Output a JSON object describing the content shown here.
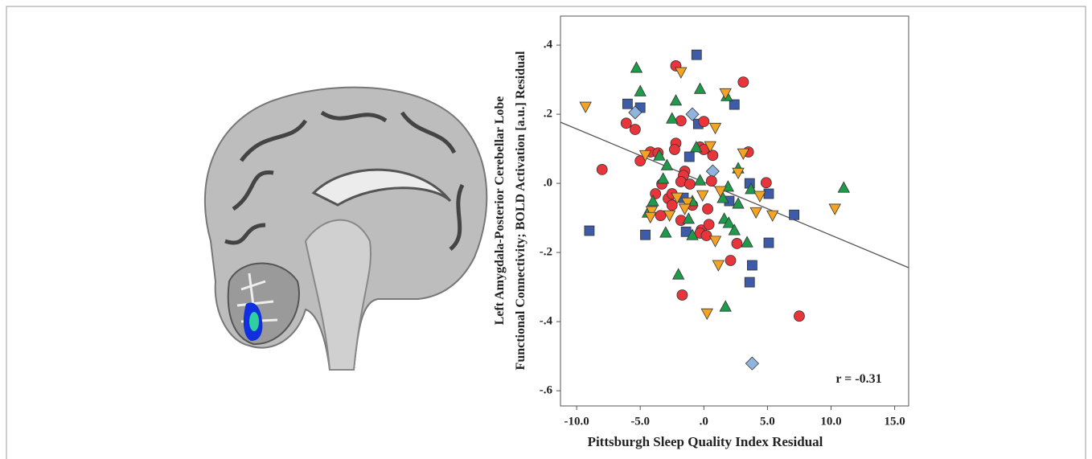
{
  "chart_data": {
    "type": "scatter",
    "ylabel": [
      "Left Amygdala-Posterior Cerebellar Lobe",
      "Functional Connectivity; BOLD Activation [a.u.] Residual"
    ],
    "xlabel": "Pittsburgh Sleep Quality Index Residual",
    "annotation": "r = -0.31",
    "xlim": [
      -11.27,
      16.1
    ],
    "ylim": [
      -0.644,
      0.484
    ],
    "xticks": [
      {
        "value": -10,
        "label": "-10.0"
      },
      {
        "value": -5,
        "label": "-5.0"
      },
      {
        "value": 0,
        "label": ".0"
      },
      {
        "value": 5,
        "label": "5.0"
      },
      {
        "value": 10,
        "label": "10.0"
      },
      {
        "value": 15,
        "label": "15.0"
      }
    ],
    "yticks": [
      {
        "value": 0.4,
        "label": ".4"
      },
      {
        "value": 0.2,
        "label": ".2"
      },
      {
        "value": 0,
        "label": ".0"
      },
      {
        "value": -0.2,
        "label": "-.2"
      },
      {
        "value": -0.4,
        "label": "-.4"
      },
      {
        "value": -0.6,
        "label": "-.6"
      }
    ],
    "fit": {
      "x": [
        -11.27,
        16.1
      ],
      "y": [
        0.177,
        -0.244
      ],
      "color": "#555555"
    },
    "series": [
      {
        "marker": "square",
        "color": "#3d5ba9",
        "x": [
          -0.57,
          -6.0,
          -5.0,
          2.4,
          -0.44,
          -1.14,
          3.6,
          5.1,
          2.0,
          7.1,
          -9.0,
          -4.6,
          -1.4,
          5.1,
          3.8,
          3.6,
          -1.6
        ],
        "y": [
          0.372,
          0.23,
          0.219,
          0.228,
          0.172,
          0.077,
          0.0,
          -0.03,
          -0.051,
          -0.091,
          -0.137,
          -0.149,
          -0.14,
          -0.172,
          -0.237,
          -0.286,
          -0.042
        ]
      },
      {
        "marker": "diamond",
        "color": "#8fb4de",
        "x": [
          -5.4,
          -0.9,
          0.7,
          3.8
        ],
        "y": [
          0.205,
          0.2,
          0.035,
          -0.521
        ]
      },
      {
        "marker": "circle",
        "color": "#e8343a",
        "x": [
          -2.2,
          3.1,
          -6.1,
          -5.4,
          0,
          -1.8,
          -2.2,
          -2.3,
          -4.2,
          -3.6,
          -0.3,
          0,
          0.7,
          3.5,
          -5.0,
          -8.0,
          -1.5,
          -1.6,
          -1.8,
          -1.1,
          0.6,
          -3.3,
          4.9,
          -3.8,
          -2.8,
          -2.5,
          -0.9,
          0.3,
          -3.4,
          -1.8,
          -0.2,
          0.4,
          -0.3,
          0.2,
          2.1,
          2.6,
          -1.7,
          7.5,
          -2.5
        ],
        "y": [
          0.34,
          0.293,
          0.174,
          0.156,
          0.179,
          0.181,
          0.116,
          0.098,
          0.091,
          0.088,
          0.105,
          0.098,
          0.081,
          0.091,
          0.065,
          0.04,
          0.035,
          0.023,
          0.005,
          -0.002,
          0.007,
          -0.002,
          0.002,
          -0.03,
          -0.044,
          -0.063,
          -0.063,
          -0.074,
          -0.093,
          -0.107,
          -0.135,
          -0.119,
          -0.144,
          -0.151,
          -0.223,
          -0.174,
          -0.323,
          -0.384,
          -0.03
        ]
      },
      {
        "marker": "triangle-up",
        "color": "#1f9a4b",
        "x": [
          -5.3,
          -5.0,
          -0.3,
          -2.2,
          1.8,
          -2.5,
          -0.6,
          -3.5,
          -2.9,
          2.7,
          -3.2,
          -0.3,
          1.9,
          3.7,
          11.0,
          -4.0,
          -0.9,
          1.5,
          2.7,
          -4.4,
          -1.2,
          1.6,
          1.96,
          -3.0,
          -0.9,
          3.4,
          -2.0,
          1.7,
          2.4
        ],
        "y": [
          0.335,
          0.267,
          0.274,
          0.24,
          0.253,
          0.188,
          0.105,
          0.081,
          0.053,
          0.044,
          0.014,
          0.009,
          -0.009,
          -0.016,
          -0.012,
          -0.051,
          -0.051,
          -0.042,
          -0.058,
          -0.084,
          -0.102,
          -0.102,
          -0.114,
          -0.142,
          -0.149,
          -0.17,
          -0.263,
          -0.356,
          -0.135
        ]
      },
      {
        "marker": "triangle-down",
        "color": "#f4a424",
        "x": [
          -1.8,
          -9.3,
          1.7,
          0.9,
          0.5,
          3.1,
          -4.6,
          2.7,
          1.3,
          -2.1,
          4.4,
          -0.1,
          -1.3,
          -1.5,
          -4.1,
          -4.2,
          4.1,
          5.4,
          10.3,
          0.9,
          1.14,
          0.25,
          -2.7
        ],
        "y": [
          0.321,
          0.221,
          0.26,
          0.16,
          0.107,
          0.086,
          0.081,
          0.03,
          -0.023,
          -0.042,
          -0.037,
          -0.035,
          -0.056,
          -0.074,
          -0.081,
          -0.098,
          -0.084,
          -0.093,
          -0.074,
          -0.167,
          -0.237,
          -0.377,
          -0.093
        ]
      }
    ]
  }
}
